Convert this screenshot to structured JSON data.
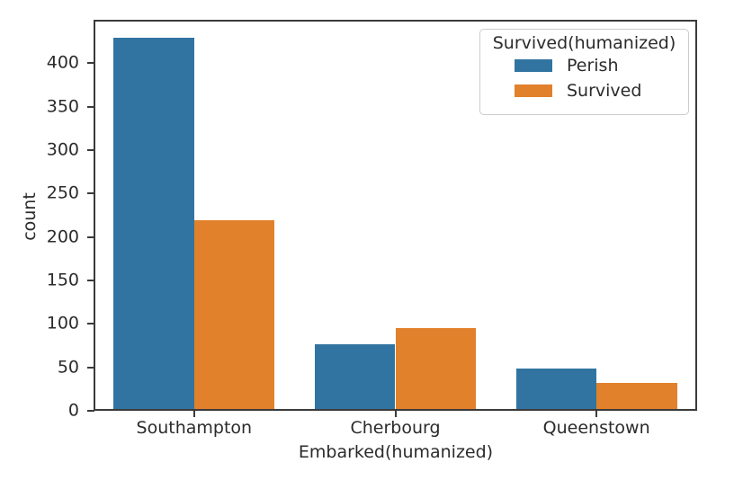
{
  "chart_data": {
    "type": "bar",
    "categories": [
      "Southampton",
      "Cherbourg",
      "Queenstown"
    ],
    "series": [
      {
        "name": "Perish",
        "values": [
          427,
          75,
          47
        ],
        "color": "#3274a1"
      },
      {
        "name": "Survived",
        "values": [
          217,
          93,
          30
        ],
        "color": "#e1812c"
      }
    ],
    "title": "",
    "xlabel": "Embarked(humanized)",
    "ylabel": "count",
    "ylim": [
      0,
      450
    ],
    "yticks": [
      0,
      50,
      100,
      150,
      200,
      250,
      300,
      350,
      400
    ],
    "grid": false,
    "legend": {
      "title": "Survived(humanized)",
      "entries": [
        "Perish",
        "Survived"
      ],
      "position": "upper right"
    }
  },
  "colors": {
    "perish": "#3274a1",
    "survived": "#e1812c",
    "spine": "#3a3a3a",
    "text": "#2b2b2b",
    "legend_border": "#cccccc",
    "background": "#ffffff"
  }
}
